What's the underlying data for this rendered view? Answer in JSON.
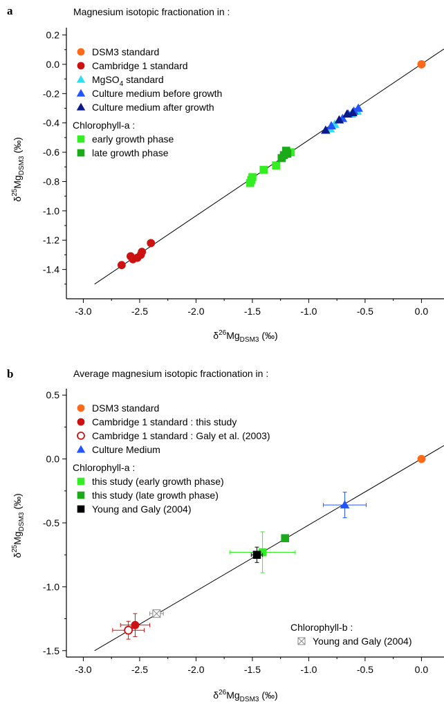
{
  "panel_letters": [
    "a",
    "b"
  ],
  "axis_labels": {
    "x_base": "26",
    "x_name": "Mg",
    "x_sub": "DSM3",
    "x_unit": " (‰)",
    "y_base": "25",
    "y_name": "Mg",
    "y_sub": "DSM3",
    "y_unit": " (‰)"
  },
  "chart_data": [
    {
      "type": "scatter",
      "title": "Magnesium isotopic fractionation in :",
      "xlabel": "δ26MgDSM3 (‰)",
      "ylabel": "δ25MgDSM3 (‰)",
      "xlim": [
        -3.15,
        0.2
      ],
      "ylim": [
        -1.6,
        0.25
      ],
      "xticks": [
        "-3.0",
        "-2.5",
        "-2.0",
        "-1.5",
        "-1.0",
        "-0.5",
        "0.0"
      ],
      "yticks": [
        "0.2",
        "0.0",
        "-0.2",
        "-0.4",
        "-0.6",
        "-0.8",
        "-1.0",
        "-1.2",
        "-1.4"
      ],
      "grid": false,
      "legend_position": "top-left",
      "legend_group_heading": "Chlorophyll-a :",
      "line": {
        "x": [
          -2.9,
          0.2
        ],
        "y": [
          -1.5,
          0.105
        ]
      },
      "series": [
        {
          "name": "DSM3 standard",
          "marker": "circle",
          "color": "#ff6a1a",
          "x": [
            0.0,
            0.0
          ],
          "y": [
            0.0,
            0.0
          ]
        },
        {
          "name": "Cambridge 1 standard",
          "marker": "circle",
          "color": "#cc1111",
          "x": [
            -2.66,
            -2.58,
            -2.56,
            -2.52,
            -2.49,
            -2.48,
            -2.4
          ],
          "y": [
            -1.37,
            -1.31,
            -1.33,
            -1.32,
            -1.3,
            -1.28,
            -1.22
          ]
        },
        {
          "name": "MgSO",
          "name_sub": "4",
          "name_suffix": " standard",
          "marker": "triangle",
          "color": "#33ddee",
          "x": [
            -0.81,
            -0.77,
            -0.62,
            -0.57
          ],
          "y": [
            -0.44,
            -0.41,
            -0.34,
            -0.32
          ]
        },
        {
          "name": "Culture medium before growth",
          "marker": "triangle",
          "color": "#2255ff",
          "x": [
            -0.8,
            -0.7,
            -0.65,
            -0.6,
            -0.56
          ],
          "y": [
            -0.42,
            -0.37,
            -0.34,
            -0.32,
            -0.3
          ]
        },
        {
          "name": "Culture medium after growth",
          "marker": "triangle",
          "color": "#0a1a88",
          "x": [
            -0.85,
            -0.73,
            -0.66,
            -0.61
          ],
          "y": [
            -0.45,
            -0.38,
            -0.34,
            -0.33
          ]
        },
        {
          "name": "early growth phase",
          "marker": "square",
          "color": "#33ee22",
          "x": [
            -1.52,
            -1.51,
            -1.5,
            -1.4,
            -1.29,
            -1.16
          ],
          "y": [
            -0.81,
            -0.79,
            -0.77,
            -0.72,
            -0.69,
            -0.6
          ]
        },
        {
          "name": "late growth phase",
          "marker": "square",
          "color": "#1aaa1a",
          "x": [
            -1.24,
            -1.22,
            -1.2,
            -1.19
          ],
          "y": [
            -0.64,
            -0.62,
            -0.59,
            -0.61
          ]
        }
      ]
    },
    {
      "type": "scatter",
      "title": "Average magnesium isotopic fractionation in :",
      "xlabel": "δ26MgDSM3 (‰)",
      "ylabel": "δ25MgDSM3 (‰)",
      "xlim": [
        -3.15,
        0.2
      ],
      "ylim": [
        -1.55,
        0.55
      ],
      "xticks": [
        "-3.0",
        "-2.5",
        "-2.0",
        "-1.5",
        "-1.0",
        "-0.5",
        "0.0"
      ],
      "yticks": [
        "0.5",
        "0.0",
        "-0.5",
        "-1.0",
        "-1.5"
      ],
      "grid": false,
      "legend_position": "top-left",
      "legend_group_heading": "Chlorophyll-a :",
      "legend2_heading": "Chlorophyll-b :",
      "legend2_position": "bottom-right",
      "line": {
        "x": [
          -2.9,
          0.2
        ],
        "y": [
          -1.5,
          0.105
        ]
      },
      "series": [
        {
          "name": "DSM3 standard",
          "marker": "circle",
          "color": "#ff6a1a",
          "x": [
            0.0
          ],
          "y": [
            0.0
          ],
          "xerr": [
            0
          ],
          "yerr": [
            0
          ]
        },
        {
          "name": "Cambridge 1 standard : this study",
          "marker": "circle",
          "color": "#cc1111",
          "x": [
            -2.54
          ],
          "y": [
            -1.3
          ],
          "xerr": [
            0.13
          ],
          "yerr": [
            0.09
          ]
        },
        {
          "name": "Cambridge 1 standard : Galy et al. (2003)",
          "marker": "circle-open",
          "color": "#cc1111",
          "x": [
            -2.6
          ],
          "y": [
            -1.34
          ],
          "xerr": [
            0.14
          ],
          "yerr": [
            0.07
          ]
        },
        {
          "name": "Culture Medium",
          "marker": "triangle",
          "color": "#2255ff",
          "x": [
            -0.68
          ],
          "y": [
            -0.36
          ],
          "xerr": [
            0.19
          ],
          "yerr": [
            0.1
          ]
        },
        {
          "name": "this study (early growth phase)",
          "marker": "square",
          "color": "#33ee22",
          "x": [
            -1.41
          ],
          "y": [
            -0.73
          ],
          "xerr": [
            0.29
          ],
          "yerr": [
            0.16
          ]
        },
        {
          "name": "this study (late growth phase)",
          "marker": "square",
          "color": "#1aaa1a",
          "x": [
            -1.21
          ],
          "y": [
            -0.62
          ],
          "xerr": [
            0
          ],
          "yerr": [
            0
          ]
        },
        {
          "name": "Young and Galy (2004)",
          "marker": "square",
          "color": "#000000",
          "x": [
            -1.46
          ],
          "y": [
            -0.75
          ],
          "xerr": [
            0.05
          ],
          "yerr": [
            0.06
          ]
        },
        {
          "name": "Young and Galy (2004)",
          "marker": "square-x",
          "color": "#888888",
          "group": "Chlorophyll-b",
          "x": [
            -2.35
          ],
          "y": [
            -1.21
          ],
          "xerr": [
            0.06
          ],
          "yerr": [
            0.02
          ]
        }
      ]
    }
  ]
}
